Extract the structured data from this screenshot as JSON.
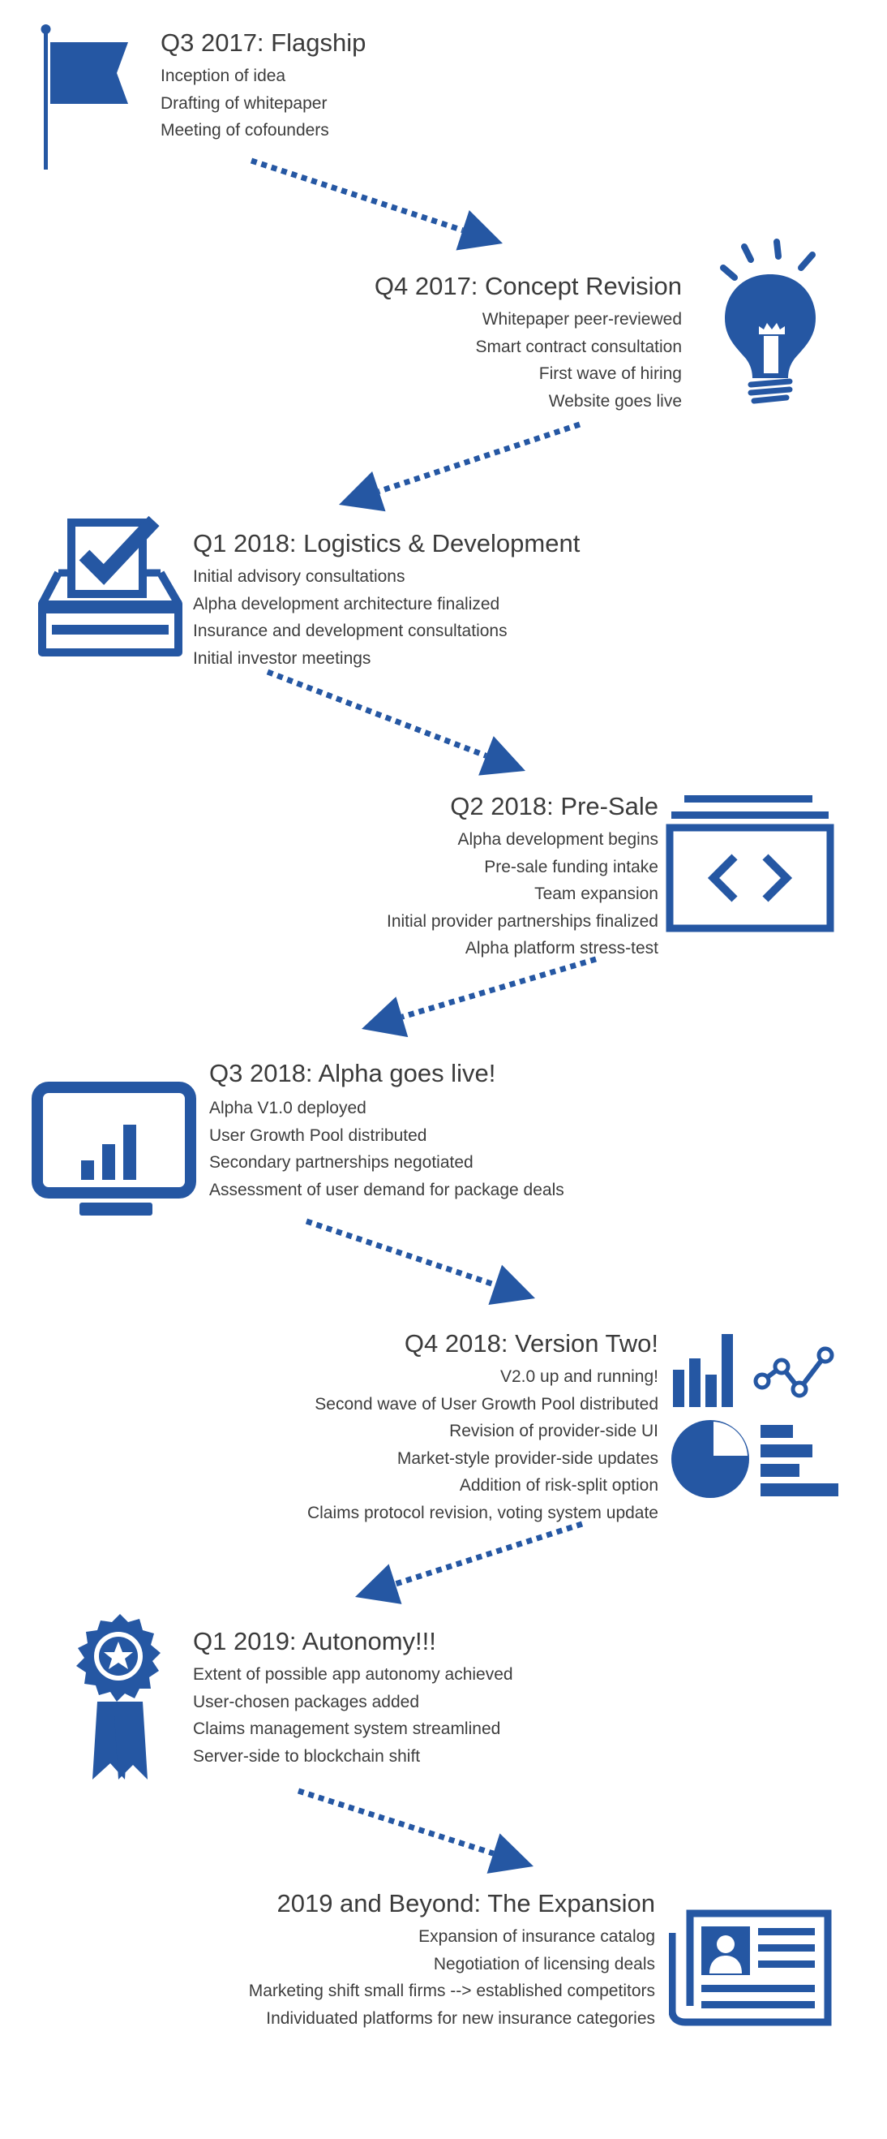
{
  "accent_color": "#2557a3",
  "text_color": "#3b3b3b",
  "milestones": [
    {
      "title": "Q3 2017: Flagship",
      "icon": "flag-icon",
      "items": [
        "Inception of idea",
        "Drafting of whitepaper",
        "Meeting of cofounders"
      ]
    },
    {
      "title": "Q4 2017: Concept Revision",
      "icon": "lightbulb-icon",
      "items": [
        "Whitepaper peer-reviewed",
        "Smart contract consultation",
        "First wave of hiring",
        "Website goes live"
      ]
    },
    {
      "title": "Q1 2018: Logistics & Development",
      "icon": "ballot-box-checkmark-icon",
      "items": [
        "Initial advisory consultations",
        "Alpha development architecture finalized",
        "Insurance and development consultations",
        "Initial investor meetings"
      ]
    },
    {
      "title": "Q2 2018: Pre-Sale",
      "icon": "code-window-icon",
      "items": [
        "Alpha development begins",
        "Pre-sale funding intake",
        "Team expansion",
        "Initial provider partnerships finalized",
        "Alpha platform stress-test"
      ]
    },
    {
      "title": "Q3 2018: Alpha goes live!",
      "icon": "monitor-chart-icon",
      "items": [
        "Alpha V1.0 deployed",
        "User Growth Pool distributed",
        "Secondary partnerships negotiated",
        "Assessment of user demand for package deals"
      ]
    },
    {
      "title": "Q4 2018: Version Two!",
      "icon": "analytics-charts-icon",
      "items": [
        "V2.0 up and running!",
        "Second wave of User Growth Pool distributed",
        "Revision of provider-side UI",
        "Market-style provider-side updates",
        "Addition of risk-split option",
        "Claims protocol revision, voting system update"
      ]
    },
    {
      "title": "Q1 2019: Autonomy!!!",
      "icon": "award-ribbon-icon",
      "items": [
        "Extent of possible app autonomy achieved",
        "User-chosen packages added",
        "Claims management system streamlined",
        "Server-side to blockchain shift"
      ]
    },
    {
      "title": "2019 and Beyond: The Expansion",
      "icon": "newspaper-profile-icon",
      "items": [
        "Expansion of insurance catalog",
        "Negotiation of licensing deals",
        "Marketing shift small firms --> established competitors",
        "Individuated platforms for new insurance categories"
      ]
    }
  ]
}
